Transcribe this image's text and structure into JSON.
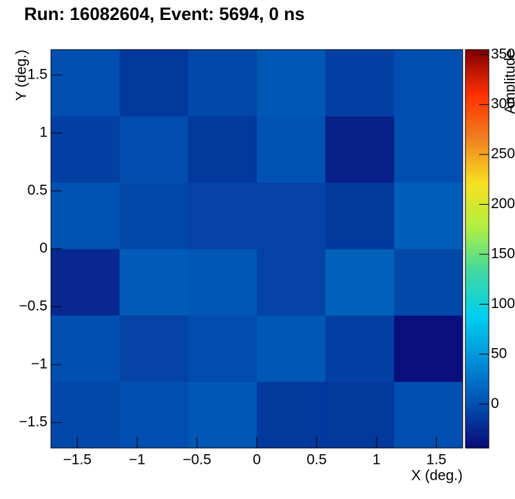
{
  "chart_data": {
    "type": "heatmap",
    "title": "Run: 16082604, Event: 5694, 0 ns",
    "x_label": "X (deg.)",
    "y_label": "Y (deg.)",
    "z_label": "Amplitude",
    "xlim": [
      -1.72,
      1.72
    ],
    "ylim": [
      -1.72,
      1.72
    ],
    "zlim": [
      -44,
      355
    ],
    "xticks": [
      {
        "value": -1.5,
        "label": "−1.5"
      },
      {
        "value": -1,
        "label": "−1"
      },
      {
        "value": -0.5,
        "label": "−0.5"
      },
      0,
      0.5,
      1,
      1.5
    ],
    "yticks": [
      {
        "value": -1.5,
        "label": "−1.5"
      },
      {
        "value": -1,
        "label": "−1"
      },
      {
        "value": -0.5,
        "label": "−0.5"
      },
      0,
      0.5,
      1,
      1.5
    ],
    "zticks": [
      0,
      50,
      100,
      150,
      200,
      250,
      300,
      350
    ],
    "colorscale": [
      "#0a0a78",
      "#0050b0",
      "#0090d8",
      "#00d0f0",
      "#40d8a0",
      "#b0f040",
      "#f8e020",
      "#f08020",
      "#ff3000",
      "#800000"
    ],
    "z": [
      [
        -5,
        0,
        5,
        -15,
        -15,
        0
      ],
      [
        0,
        -8,
        -2,
        5,
        -10,
        -40
      ],
      [
        -25,
        8,
        5,
        -8,
        12,
        -5
      ],
      [
        2,
        -5,
        -8,
        -8,
        -15,
        10
      ],
      [
        -10,
        -2,
        -15,
        2,
        -30,
        0
      ],
      [
        0,
        -15,
        -5,
        5,
        -10,
        0
      ]
    ]
  }
}
